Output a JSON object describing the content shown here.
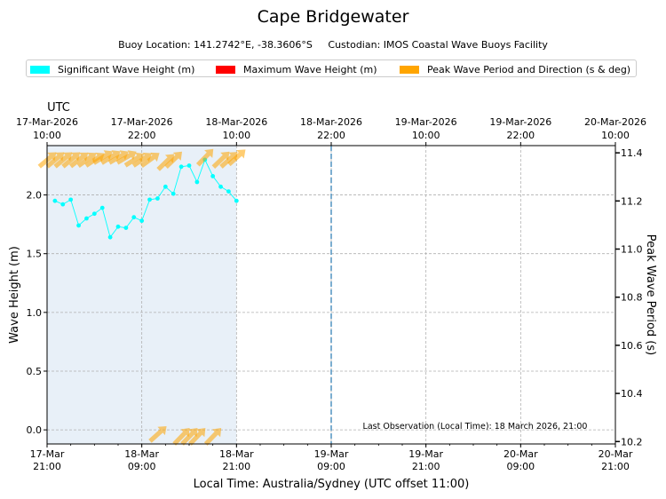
{
  "title": "Cape Bridgewater",
  "subtitle": "Buoy Location: 141.2742°E, -38.3606°S     Custodian: IMOS Coastal Wave Buoys Facility",
  "legend": [
    {
      "label": "Significant Wave Height (m)",
      "color": "#00ffff"
    },
    {
      "label": "Maximum Wave Height (m)",
      "color": "#ff0000"
    },
    {
      "label": "Peak Wave Period and Direction (s & deg)",
      "color": "#ffa500"
    }
  ],
  "colors": {
    "sig_line": "#00ffff",
    "area_fill": "#e8f0f8",
    "period_arrow": "#ffa500",
    "grid": "#b0b0b0",
    "now_line": "#5b9ac4"
  },
  "chart_data": {
    "type": "line",
    "title": "Cape Bridgewater",
    "xlabel": "Local Time: Australia/Sydney (UTC offset 11:00)",
    "x_top_label": "UTC",
    "ylabel": "Wave Height (m)",
    "y2label": "Peak Wave Period (s)",
    "x_range_hours_from_start": [
      0,
      72
    ],
    "ylim": [
      -0.12,
      2.42
    ],
    "y2lim": [
      10.19,
      11.43
    ],
    "y_ticks": [
      "0.0",
      "0.5",
      "1.0",
      "1.5",
      "2.0"
    ],
    "y2_ticks": [
      "10.2",
      "10.4",
      "10.6",
      "10.8",
      "11.0",
      "11.2",
      "11.4"
    ],
    "x_ticks_bottom": [
      [
        "17-Mar",
        "21:00"
      ],
      [
        "18-Mar",
        "09:00"
      ],
      [
        "18-Mar",
        "21:00"
      ],
      [
        "19-Mar",
        "09:00"
      ],
      [
        "19-Mar",
        "21:00"
      ],
      [
        "20-Mar",
        "09:00"
      ],
      [
        "20-Mar",
        "21:00"
      ]
    ],
    "x_ticks_top": [
      [
        "17-Mar-2026",
        "10:00"
      ],
      [
        "17-Mar-2026",
        "22:00"
      ],
      [
        "18-Mar-2026",
        "10:00"
      ],
      [
        "18-Mar-2026",
        "22:00"
      ],
      [
        "19-Mar-2026",
        "10:00"
      ],
      [
        "19-Mar-2026",
        "22:00"
      ],
      [
        "20-Mar-2026",
        "10:00"
      ]
    ],
    "grid": true,
    "legend_position": "top",
    "series": [
      {
        "name": "Significant Wave Height (m)",
        "x_hours": [
          1,
          2,
          3,
          4,
          5,
          6,
          7,
          8,
          9,
          10,
          11,
          12,
          13,
          14,
          15,
          16,
          17,
          18,
          19,
          20,
          21,
          22,
          23,
          24
        ],
        "values": [
          1.95,
          1.92,
          1.96,
          1.74,
          1.8,
          1.84,
          1.89,
          1.64,
          1.73,
          1.72,
          1.81,
          1.78,
          1.96,
          1.97,
          2.07,
          2.01,
          2.24,
          2.25,
          2.11,
          2.3,
          2.16,
          2.07,
          2.03,
          1.95
        ]
      },
      {
        "name": "Peak Wave Period and Direction (s & deg)",
        "x_hours": [
          0,
          1,
          2,
          3,
          4,
          5,
          6,
          7,
          8,
          9,
          10,
          11,
          12,
          13,
          14,
          15,
          16,
          17,
          18,
          19,
          20,
          21,
          22,
          23,
          24
        ],
        "periods_s": [
          11.37,
          11.37,
          11.37,
          11.37,
          11.37,
          11.37,
          11.37,
          11.38,
          11.38,
          11.38,
          11.38,
          11.37,
          11.37,
          11.37,
          10.23,
          11.36,
          11.37,
          10.22,
          10.22,
          10.22,
          11.38,
          10.22,
          11.37,
          11.37,
          11.38
        ],
        "directions_deg": [
          230,
          230,
          230,
          230,
          232,
          234,
          236,
          238,
          238,
          240,
          240,
          238,
          236,
          234,
          228,
          226,
          226,
          224,
          224,
          224,
          224,
          224,
          226,
          228,
          228
        ]
      }
    ],
    "current_time_marker_hours": 36,
    "annotation": "Last Observation (Local Time): 18 March 2026, 21:00"
  }
}
